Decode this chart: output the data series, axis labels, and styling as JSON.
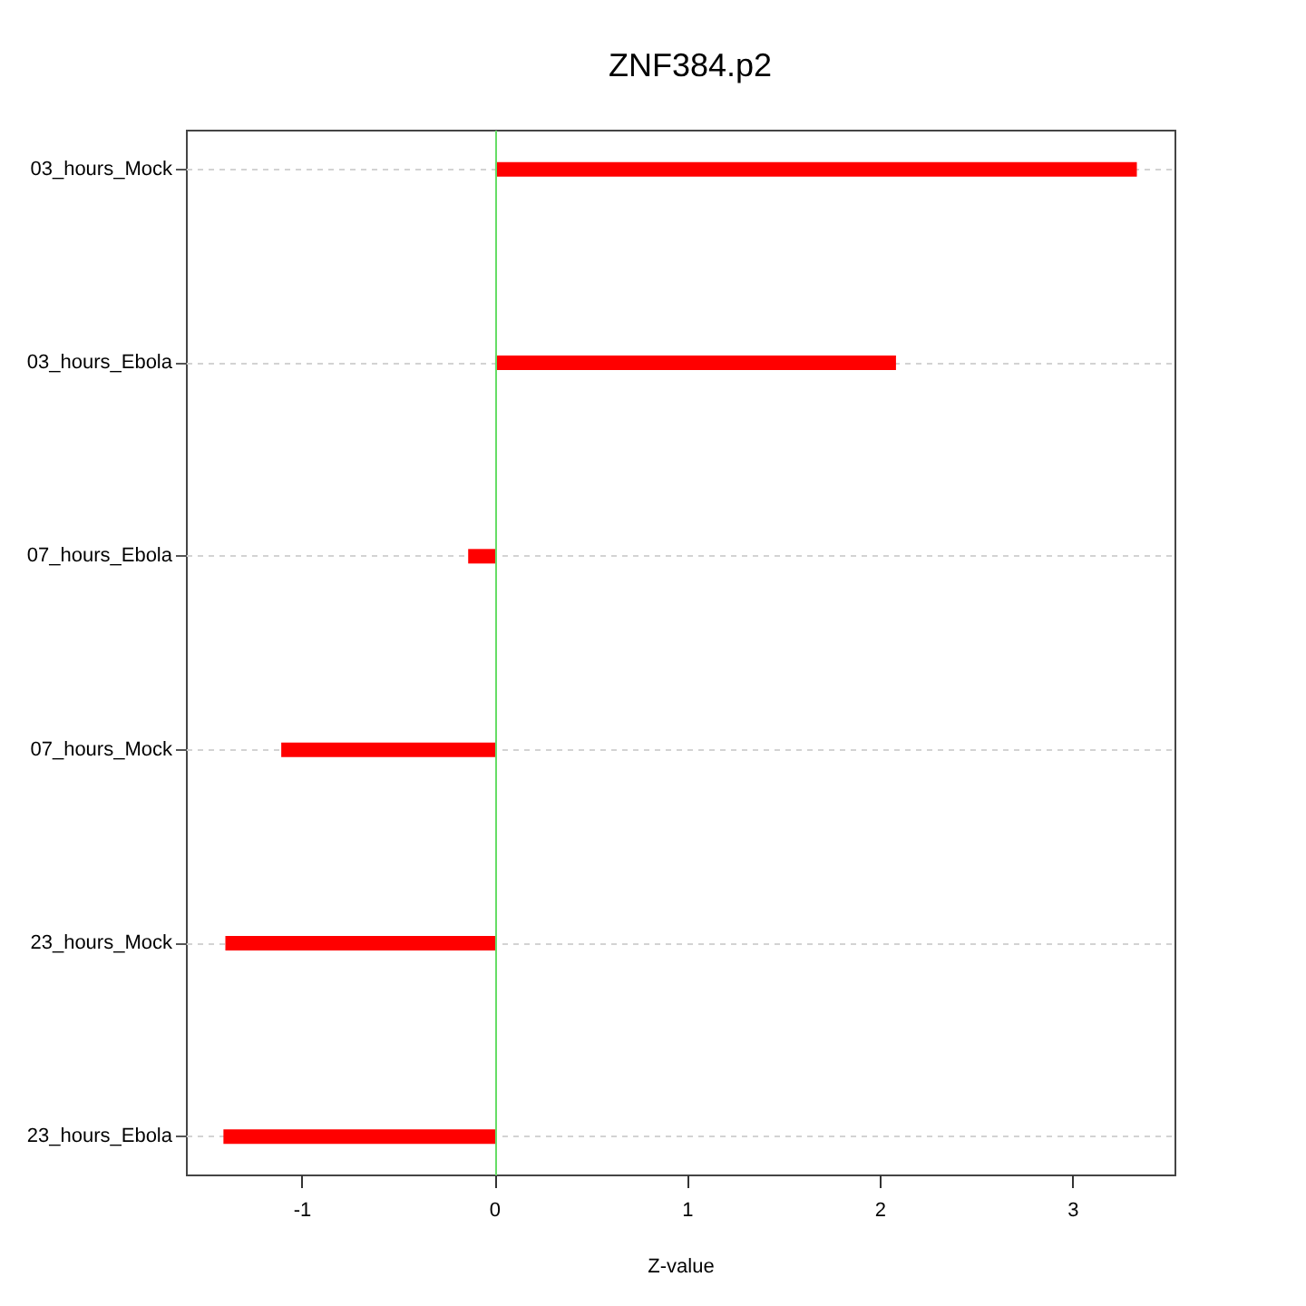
{
  "chart_data": {
    "type": "bar",
    "orientation": "horizontal",
    "title": "ZNF384.p2",
    "xlabel": "Z-value",
    "categories": [
      "03_hours_Mock",
      "03_hours_Ebola",
      "07_hours_Ebola",
      "07_hours_Mock",
      "23_hours_Mock",
      "23_hours_Ebola"
    ],
    "values": [
      3.33,
      2.08,
      -0.14,
      -1.11,
      -1.4,
      -1.41
    ],
    "color": "#ff0000",
    "xlim": [
      -1.6,
      3.53
    ],
    "xticks": [
      -1,
      0,
      1,
      2,
      3
    ],
    "grid": "y",
    "ref_lines": [
      {
        "axis": "x",
        "value": 0,
        "color": "#66dd66"
      }
    ]
  }
}
